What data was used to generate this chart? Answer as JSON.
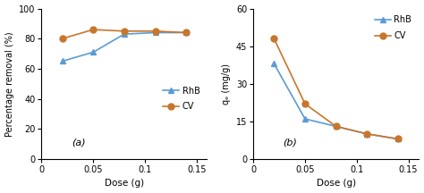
{
  "dose": [
    0.02,
    0.05,
    0.08,
    0.11,
    0.14
  ],
  "a_RhB": [
    65,
    71,
    83,
    84,
    84
  ],
  "a_CV": [
    80,
    86,
    85,
    85,
    84
  ],
  "b_RhB": [
    38,
    16,
    13,
    10,
    8
  ],
  "b_CV": [
    48,
    22,
    13,
    10,
    8
  ],
  "color_RhB": "#5b9bd5",
  "color_CV": "#c8762b",
  "a_ylabel": "Percentage removal (%)",
  "b_ylabel": "qₑ (mg/g)",
  "xlabel": "Dose (g)",
  "a_ylim": [
    0,
    100
  ],
  "b_ylim": [
    0,
    60
  ],
  "a_yticks": [
    0,
    20,
    40,
    60,
    80,
    100
  ],
  "b_yticks": [
    0,
    15,
    30,
    45,
    60
  ],
  "xlim": [
    0,
    0.16
  ],
  "xticks": [
    0,
    0.05,
    0.1,
    0.15
  ],
  "xtick_labels": [
    "0",
    "0.05",
    "0.1",
    "0.15"
  ],
  "label_a": "(a)",
  "label_b": "(b)",
  "legend_RhB": "RhB",
  "legend_CV": "CV"
}
